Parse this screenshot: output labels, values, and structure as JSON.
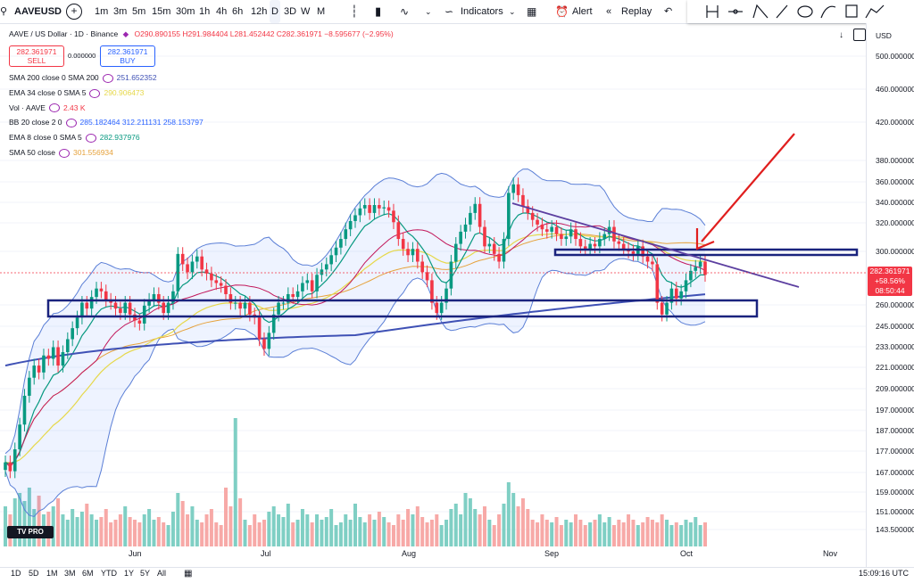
{
  "toolbar": {
    "symbol": "AAVEUSD",
    "intervals": [
      "1m",
      "3m",
      "5m",
      "15m",
      "30m",
      "1h",
      "4h",
      "6h",
      "12h",
      "D",
      "3D",
      "W",
      "M"
    ],
    "active_interval": "D",
    "indicators_label": "Indicators",
    "alert_label": "Alert",
    "replay_label": "Replay"
  },
  "legend": {
    "title": "AAVE / US Dollar · 1D · Binance",
    "ohlc": "O290.890155 H291.984404 L281.452442 C282.361971 −8.595677 (−2.95%)",
    "sell_price": "282.361971",
    "sell_label": "SELL",
    "spread": "0.000000",
    "buy_price": "282.361971",
    "buy_label": "BUY",
    "indicators": [
      {
        "name": "SMA 200 close 0 SMA 200",
        "values": "251.652352",
        "color": "#3f51b5"
      },
      {
        "name": "EMA 34 close 0 SMA 5",
        "values": "290.906473",
        "color": "#e6d84a"
      },
      {
        "name": "Vol · AAVE",
        "values": "2.43 K",
        "color": "#f23645"
      },
      {
        "name": "BB 20 close 2 0",
        "values": "285.182464  312.211131  258.153797",
        "color": "#2962ff"
      },
      {
        "name": "EMA 8 close 0 SMA 5",
        "values": "282.937976",
        "color": "#089981"
      },
      {
        "name": "SMA 50 close",
        "values": "301.556934",
        "color": "#e6a23c"
      }
    ]
  },
  "colors": {
    "up": "#089981",
    "down": "#f23645",
    "vol_up": "#7fcfc4",
    "vol_down": "#f7a9a7",
    "arrow": "#e01e1e",
    "box": "#1a237e",
    "trend": "#5c3fa0"
  },
  "currency": "USD",
  "current_price": {
    "price": "282.361971",
    "change": "+58.56%",
    "countdown": "08:50:44"
  },
  "bottom": {
    "ranges": [
      "1D",
      "5D",
      "1M",
      "3M",
      "6M",
      "YTD",
      "1Y",
      "5Y",
      "All"
    ],
    "time": "15:09:16 UTC"
  },
  "logo": "TV PRO",
  "chart_data": {
    "type": "candlestick",
    "y_axis_ticks": [
      "500.000000",
      "460.000000",
      "420.000000",
      "380.000000",
      "360.000000",
      "340.000000",
      "320.000000",
      "300.000000",
      "260.000000",
      "245.000000",
      "233.000000",
      "221.000000",
      "209.000000",
      "197.000000",
      "187.000000",
      "177.000000",
      "167.000000",
      "159.000000",
      "151.000000",
      "143.500000"
    ],
    "x_axis_ticks": [
      "Jun",
      "Jul",
      "Aug",
      "Sep",
      "Oct",
      "Nov"
    ],
    "scale": "log",
    "closes": [
      172,
      168,
      178,
      190,
      205,
      215,
      222,
      218,
      228,
      226,
      233,
      222,
      230,
      238,
      245,
      252,
      262,
      258,
      266,
      272,
      270,
      264,
      262,
      258,
      255,
      262,
      254,
      250,
      248,
      260,
      264,
      268,
      262,
      255,
      262,
      270,
      298,
      290,
      284,
      292,
      296,
      286,
      283,
      278,
      276,
      274,
      268,
      262,
      262,
      258,
      262,
      254,
      252,
      238,
      232,
      242,
      254,
      262,
      262,
      268,
      266,
      270,
      276,
      278,
      270,
      282,
      286,
      290,
      297,
      303,
      310,
      318,
      325,
      330,
      336,
      339,
      332,
      339,
      336,
      337,
      334,
      324,
      310,
      302,
      297,
      302,
      292,
      284,
      278,
      262,
      255,
      262,
      272,
      292,
      306,
      316,
      322,
      332,
      340,
      320,
      304,
      306,
      298,
      292,
      310,
      350,
      358,
      348,
      338,
      332,
      326,
      322,
      318,
      316,
      320,
      314,
      310,
      312,
      318,
      310,
      304,
      302,
      306,
      304,
      310,
      314,
      320,
      308,
      306,
      302,
      300,
      298,
      304,
      296,
      292,
      290,
      262,
      254,
      262,
      272,
      265,
      270,
      278,
      285,
      288,
      292,
      282
    ],
    "volumes": [
      0.15,
      0.12,
      0.18,
      0.2,
      0.17,
      0.22,
      0.14,
      0.19,
      0.12,
      0.13,
      0.15,
      0.18,
      0.12,
      0.1,
      0.14,
      0.11,
      0.13,
      0.16,
      0.12,
      0.1,
      0.11,
      0.14,
      0.09,
      0.1,
      0.12,
      0.15,
      0.11,
      0.1,
      0.09,
      0.12,
      0.14,
      0.1,
      0.11,
      0.09,
      0.08,
      0.13,
      0.2,
      0.17,
      0.12,
      0.15,
      0.1,
      0.09,
      0.12,
      0.14,
      0.09,
      0.08,
      0.22,
      0.15,
      0.48,
      0.18,
      0.1,
      0.08,
      0.12,
      0.09,
      0.1,
      0.13,
      0.15,
      0.12,
      0.11,
      0.16,
      0.09,
      0.1,
      0.14,
      0.12,
      0.09,
      0.12,
      0.1,
      0.11,
      0.14,
      0.08,
      0.09,
      0.12,
      0.1,
      0.16,
      0.11,
      0.09,
      0.12,
      0.1,
      0.13,
      0.11,
      0.09,
      0.08,
      0.12,
      0.1,
      0.14,
      0.12,
      0.15,
      0.11,
      0.09,
      0.1,
      0.12,
      0.08,
      0.1,
      0.14,
      0.16,
      0.12,
      0.2,
      0.18,
      0.14,
      0.12,
      0.15,
      0.1,
      0.08,
      0.12,
      0.16,
      0.24,
      0.2,
      0.15,
      0.18,
      0.14,
      0.1,
      0.09,
      0.12,
      0.1,
      0.09,
      0.11,
      0.08,
      0.1,
      0.09,
      0.12,
      0.1,
      0.08,
      0.09,
      0.1,
      0.12,
      0.09,
      0.11,
      0.08,
      0.1,
      0.09,
      0.12,
      0.1,
      0.08,
      0.09,
      0.11,
      0.1,
      0.09,
      0.12,
      0.1,
      0.08,
      0.09,
      0.08,
      0.1,
      0.09,
      0.11,
      0.08,
      0.09
    ]
  }
}
